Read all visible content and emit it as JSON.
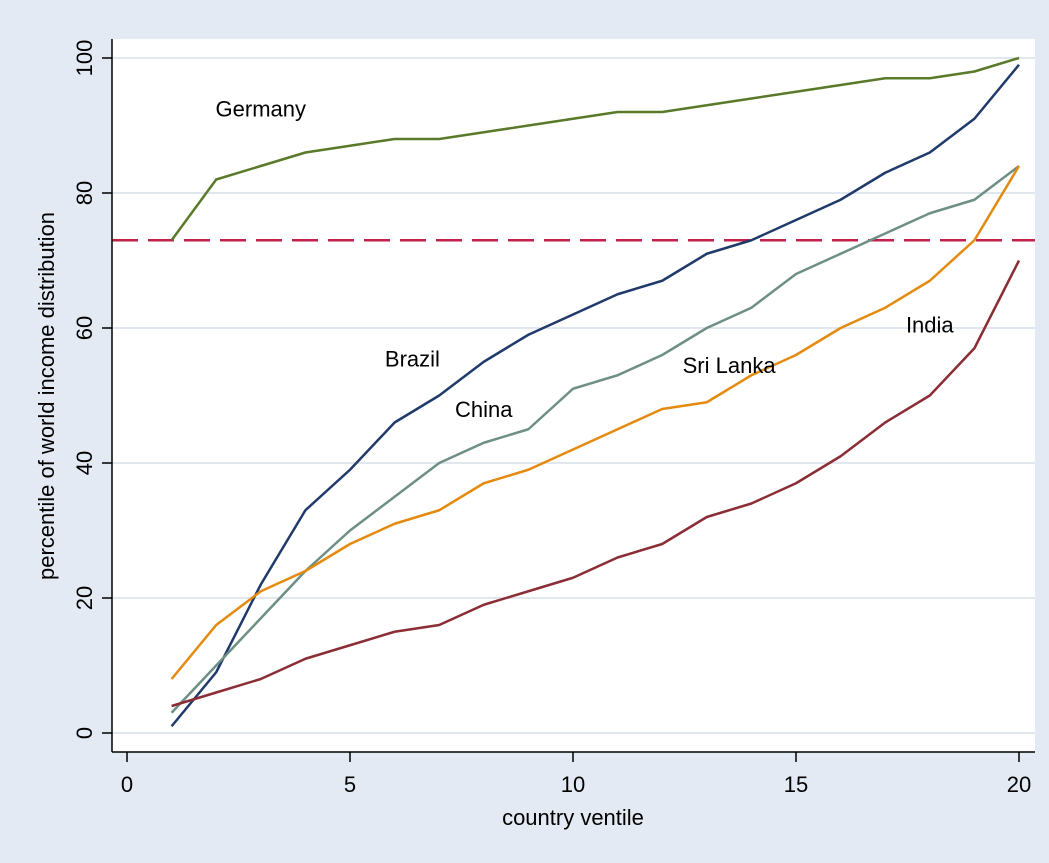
{
  "chart_data": {
    "type": "line",
    "title": "",
    "xlabel": "country ventile",
    "ylabel": "percentile of world income distribution",
    "xlim": [
      0,
      20
    ],
    "ylim": [
      0,
      100
    ],
    "xticks": [
      "0",
      "5",
      "10",
      "15",
      "20"
    ],
    "yticks": [
      "0",
      "20",
      "40",
      "60",
      "80",
      "100"
    ],
    "grid": "horizontal",
    "legend": "none (inline labels)",
    "x": [
      1,
      2,
      3,
      4,
      5,
      6,
      7,
      8,
      9,
      10,
      11,
      12,
      13,
      14,
      15,
      16,
      17,
      18,
      19,
      20
    ],
    "reference_line": {
      "y": 73,
      "color": "#c0204a",
      "style": "dashed"
    },
    "series": [
      {
        "name": "Germany",
        "color": "#5a7a2a",
        "values": [
          73,
          82,
          84,
          86,
          87,
          88,
          88,
          89,
          90,
          91,
          92,
          92,
          93,
          94,
          95,
          96,
          97,
          97,
          98,
          100
        ],
        "label_at": [
          3,
          92.5
        ]
      },
      {
        "name": "Brazil",
        "color": "#1f3a6b",
        "values": [
          1,
          9,
          22,
          33,
          39,
          46,
          50,
          55,
          59,
          62,
          65,
          67,
          71,
          73,
          76,
          79,
          83,
          86,
          91,
          99
        ],
        "label_at": [
          6.4,
          55.5
        ]
      },
      {
        "name": "China",
        "color": "#6e8f86",
        "values": [
          3,
          10,
          17,
          24,
          30,
          35,
          40,
          43,
          45,
          51,
          53,
          56,
          60,
          63,
          68,
          71,
          74,
          77,
          79,
          84
        ],
        "label_at": [
          8,
          48
        ]
      },
      {
        "name": "Sri Lanka",
        "color": "#e38a0f",
        "values": [
          8,
          16,
          21,
          24,
          28,
          31,
          33,
          37,
          39,
          42,
          45,
          48,
          49,
          53,
          56,
          60,
          63,
          67,
          73,
          84
        ],
        "label_at": [
          13.5,
          54.5
        ]
      },
      {
        "name": "India",
        "color": "#8b2d35",
        "values": [
          4,
          6,
          8,
          11,
          13,
          15,
          16,
          19,
          21,
          23,
          26,
          28,
          32,
          34,
          37,
          41,
          46,
          50,
          57,
          70
        ],
        "label_at": [
          18,
          60.5
        ]
      }
    ]
  }
}
